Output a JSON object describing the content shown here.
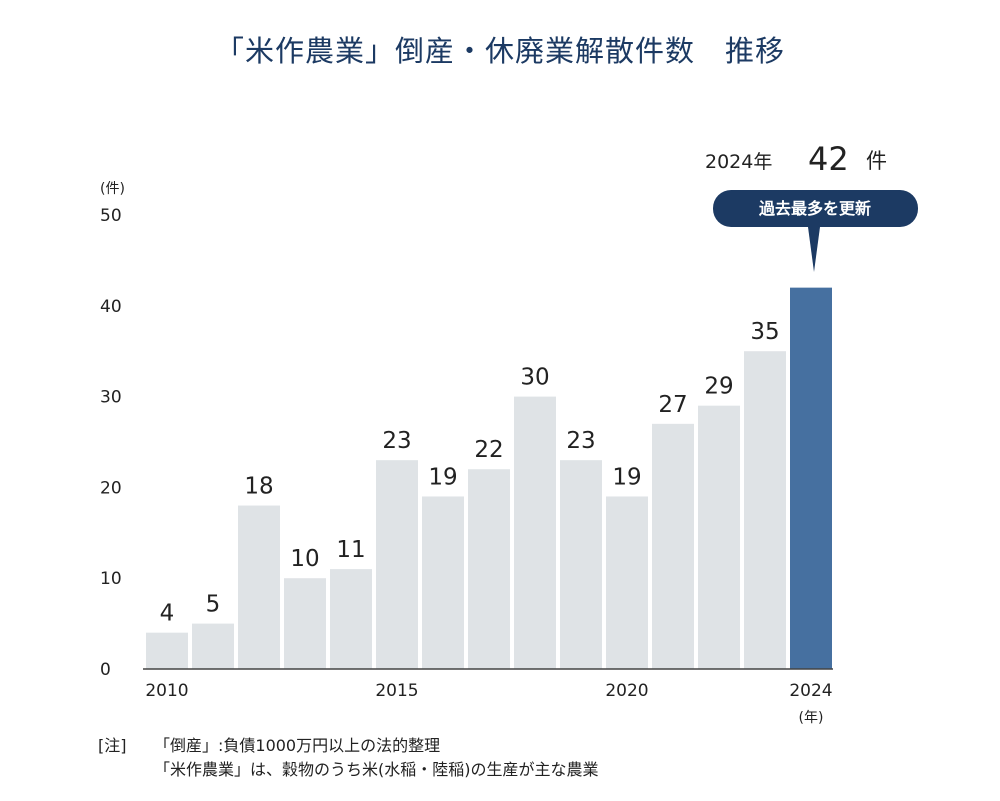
{
  "title": "「米作農業」倒産・休廃業解散件数　推移",
  "chart_data": {
    "type": "bar",
    "title": "「米作農業」倒産・休廃業解散件数　推移",
    "xlabel": "(年)",
    "ylabel": "(件)",
    "categories": [
      "2010",
      "2011",
      "2012",
      "2013",
      "2014",
      "2015",
      "2016",
      "2017",
      "2018",
      "2019",
      "2020",
      "2021",
      "2022",
      "2023",
      "2024"
    ],
    "values": [
      4,
      5,
      18,
      10,
      11,
      23,
      19,
      22,
      30,
      23,
      19,
      27,
      29,
      35,
      42
    ],
    "x_tick_labels": [
      "2010",
      "2015",
      "2020",
      "2024"
    ],
    "y_ticks": [
      0,
      10,
      20,
      30,
      40,
      50
    ],
    "ylim": [
      0,
      50
    ],
    "grid": false,
    "highlight": {
      "category": "2024",
      "year_label": "2024年",
      "value_label": "42",
      "unit_label": "件",
      "badge": "過去最多を更新"
    },
    "colors": {
      "bar": "#dfe3e6",
      "highlight_bar": "#4670a0",
      "badge": "#1c3a63",
      "axis": "#444444"
    }
  },
  "notes": {
    "bracket": "[注]",
    "line1": "「倒産」:負債1000万円以上の法的整理",
    "line2": "「米作農業」は、穀物のうち米(水稲・陸稲)の生産が主な農業"
  }
}
